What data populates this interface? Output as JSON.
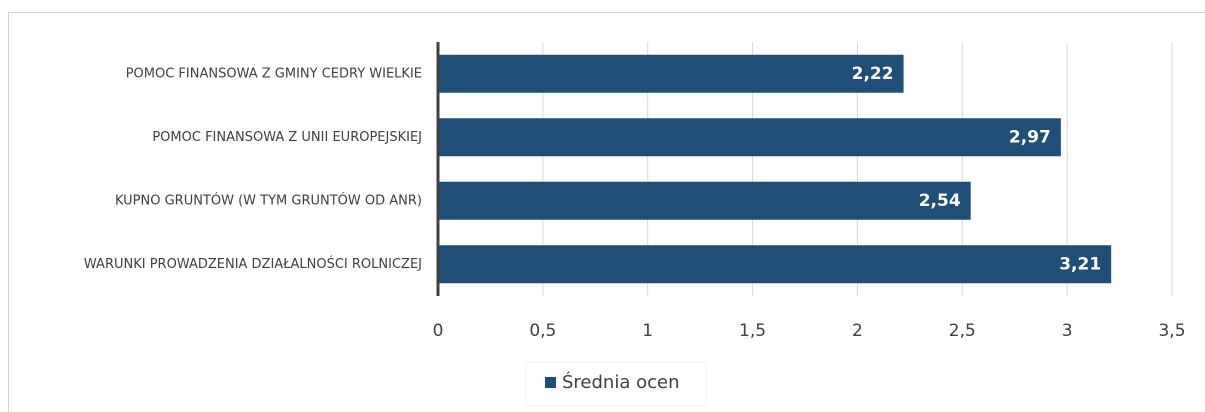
{
  "chart_data": {
    "type": "bar",
    "orientation": "horizontal",
    "categories": [
      "POMOC FINANSOWA Z GMINY CEDRY WIELKIE",
      "POMOC FINANSOWA Z UNII EUROPEJSKIEJ",
      "KUPNO GRUNTÓW (W TYM GRUNTÓW OD ANR)",
      "WARUNKI PROWADZENIA DZIAŁALNOŚCI ROLNICZEJ"
    ],
    "series": [
      {
        "name": "Średnia ocen",
        "color": "#1f4e79",
        "values": [
          2.22,
          2.97,
          2.54,
          3.21
        ],
        "value_labels": [
          "2,22",
          "2,97",
          "2,54",
          "3,21"
        ]
      }
    ],
    "xlim": [
      0,
      3.5
    ],
    "xticks": [
      0,
      {
        "value": 0.5,
        "label": "0,5"
      },
      1,
      {
        "value": 1.5,
        "label": "1,5"
      },
      2,
      {
        "value": 2.5,
        "label": "2,5"
      },
      3,
      {
        "value": 3.5,
        "label": "3,5"
      }
    ],
    "grid": true,
    "legend": "bottom"
  }
}
